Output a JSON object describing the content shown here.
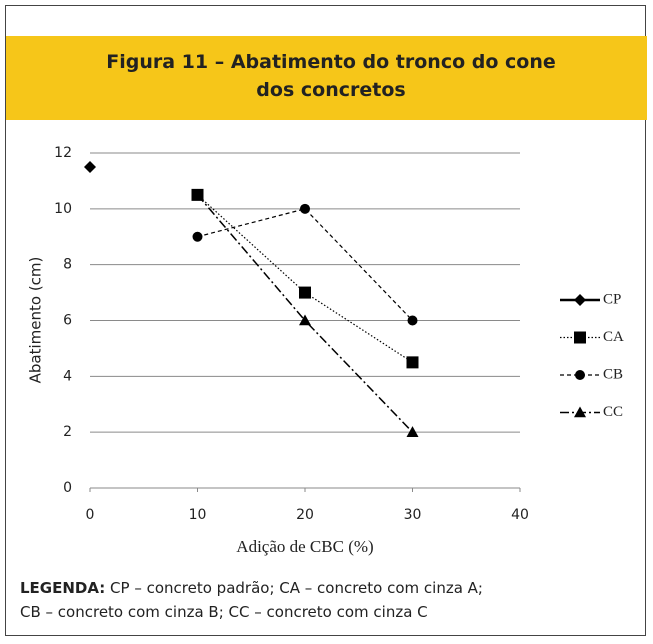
{
  "chart_data": {
    "type": "line",
    "title": "Figura 11 – Abatimento do tronco do cone dos concretos",
    "xlabel": "Adição de CBC (%)",
    "ylabel": "Abatimento (cm)",
    "xlim": [
      0,
      40
    ],
    "xticks": [
      0,
      10,
      20,
      30,
      40
    ],
    "ylim": [
      0,
      12
    ],
    "yticks": [
      0,
      2,
      4,
      6,
      8,
      10,
      12
    ],
    "grid": true,
    "legend": "right",
    "series": [
      {
        "name": "CP",
        "color": "#000000",
        "marker": "diamond",
        "dash": "solid",
        "x": [
          0
        ],
        "values": [
          11.5
        ]
      },
      {
        "name": "CA",
        "color": "#000000",
        "marker": "square",
        "dash": "dotted",
        "x": [
          10,
          20,
          30
        ],
        "values": [
          10.5,
          7,
          4.5
        ]
      },
      {
        "name": "CB",
        "color": "#000000",
        "marker": "circle",
        "dash": "dashed",
        "x": [
          10,
          20,
          30
        ],
        "values": [
          9,
          10,
          6
        ]
      },
      {
        "name": "CC",
        "color": "#000000",
        "marker": "triangle",
        "dash": "dashdot",
        "x": [
          10,
          20,
          30
        ],
        "values": [
          10.5,
          6,
          2
        ]
      }
    ],
    "note_label": "LEGENDA:",
    "note_lines": [
      "CP – concreto padrão; CA – concreto com cinza A;",
      "CB – concreto com cinza B; CC – concreto com cinza C"
    ]
  }
}
